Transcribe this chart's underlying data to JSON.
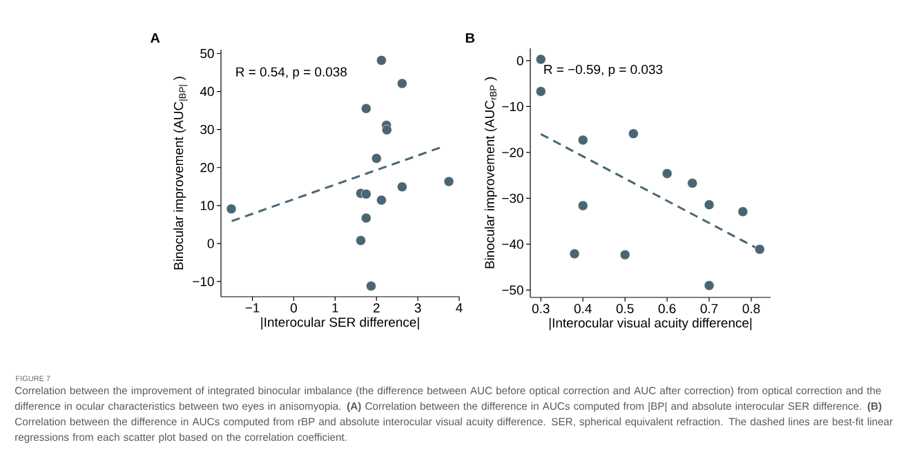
{
  "chart_data": [
    {
      "type": "scatter",
      "title": "A",
      "xlabel": "|Interocular SER difference|",
      "ylabel": "Binocular improvement (AUC$_{|BP|}$ )",
      "xlim": [
        -1.76,
        4
      ],
      "ylim": [
        -14,
        51
      ],
      "xticks": [
        {
          "value": -1,
          "label": "−1"
        },
        0,
        1,
        2,
        3,
        4
      ],
      "yticks": [
        {
          "value": -10,
          "label": "−10"
        },
        0,
        10,
        20,
        30,
        40,
        50
      ],
      "annotations": [
        "R = 0.54, p = 0.038",
        "FIGURE 7",
        "Correlation between the improvement of integrated binocular imbalance (the difference between AUC before optical correction and AUC after correction) from optical correction and the difference in ocular characteristics between two eyes in anisomyopia. **(A)** Correlation between the difference in AUCs computed from |BP| and absolute interocular SER difference. **(B)** Correlation between the difference in AUCs computed from rBP and absolute interocular visual acuity difference. SER, spherical equivalent refraction. The dashed lines are best-fit linear regressions from each scatter plot based on the correlation coefficient."
      ],
      "series": [
        {
          "marker": "circle",
          "color": "#4a6675",
          "x": [
            -1.51,
            2.12,
            2.62,
            1.75,
            2.24,
            2.25,
            2.0,
            3.75,
            2.62,
            1.62,
            1.75,
            2.12,
            1.75,
            1.62,
            1.87
          ],
          "values": [
            9.1,
            48.2,
            42.1,
            35.5,
            31.1,
            29.9,
            22.4,
            16.3,
            14.9,
            13.2,
            13.0,
            11.4,
            6.7,
            0.8,
            -11.2
          ]
        },
        {
          "type": "line",
          "line_style": "dashed",
          "marker": "none",
          "color": "#4a6675",
          "x": [
            -1.5,
            3.53
          ],
          "values": [
            5.9,
            25.2
          ]
        }
      ]
    },
    {
      "type": "scatter",
      "title": "B",
      "xlabel": "|Interocular visual acuity difference|",
      "ylabel": "Binocular improvement (AUC$_{rBP}$ )",
      "xlim": [
        0.275,
        0.846
      ],
      "ylim": [
        -51.6,
        2.7
      ],
      "xticks": [
        0.3,
        0.4,
        0.5,
        0.6,
        0.7,
        0.8
      ],
      "yticks": [
        {
          "value": -50,
          "label": "−50"
        },
        {
          "value": -40,
          "label": "−40"
        },
        {
          "value": -30,
          "label": "−30"
        },
        {
          "value": -20,
          "label": "−20"
        },
        {
          "value": -10,
          "label": "−10"
        },
        0
      ],
      "annotations": [
        "R = −0.59, p = 0.033"
      ],
      "series": [
        {
          "marker": "circle",
          "color": "#4a6675",
          "x": [
            0.3,
            0.3,
            0.4,
            0.52,
            0.6,
            0.66,
            0.7,
            0.78,
            0.4,
            0.38,
            0.5,
            0.82,
            0.7
          ],
          "values": [
            0.3,
            -6.7,
            -17.3,
            -15.9,
            -24.6,
            -26.7,
            -31.4,
            -32.9,
            -31.6,
            -42.1,
            -42.3,
            -41.1,
            -49.0
          ]
        },
        {
          "type": "line",
          "line_style": "dashed",
          "marker": "none",
          "color": "#4a6675",
          "x": [
            0.3,
            0.82
          ],
          "values": [
            -16.0,
            -41.2
          ]
        }
      ]
    }
  ]
}
